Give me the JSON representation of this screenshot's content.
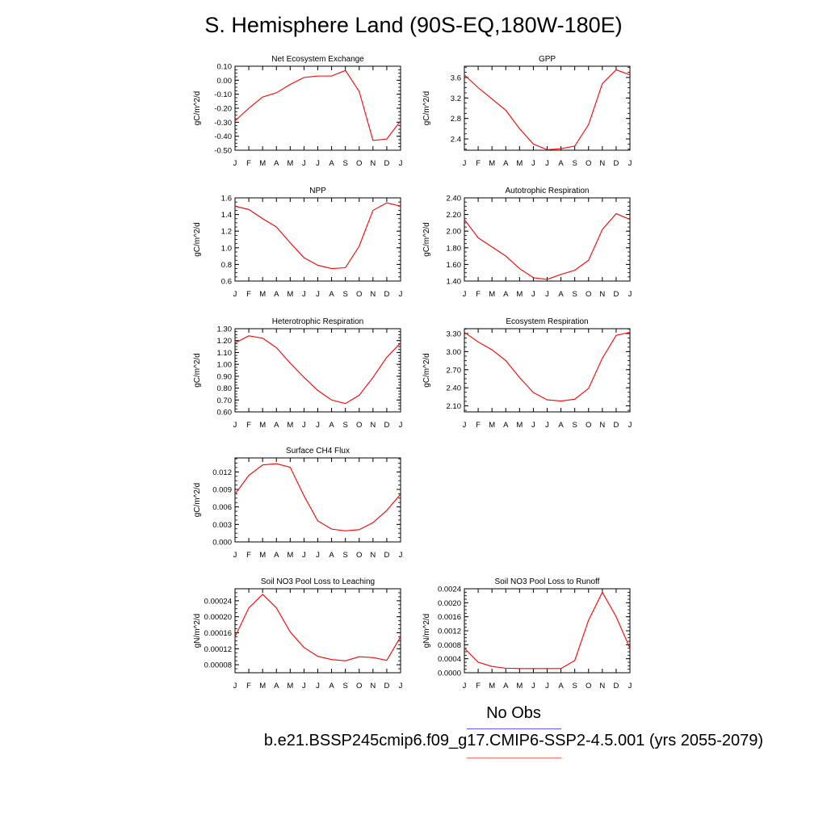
{
  "title": "S. Hemisphere Land (90S-EQ,180W-180E)",
  "legend": {
    "obs_label": "No Obs",
    "case_label": "b.e21.BSSP245cmip6.f09_g17.CMIP6-SSP2-4.5.001 (yrs 2055-2079)",
    "obs_color": "#5b5bff",
    "case_color": "#ff0000"
  },
  "chart_data": [
    {
      "type": "line",
      "title": "Net Ecosystem Exchange",
      "ylabel": "gC/m^2/d",
      "categories": [
        "J",
        "F",
        "M",
        "A",
        "M",
        "J",
        "J",
        "A",
        "S",
        "O",
        "N",
        "D",
        "J"
      ],
      "series": [
        {
          "values": [
            -0.29,
            -0.2,
            -0.12,
            -0.09,
            -0.03,
            0.02,
            0.03,
            0.03,
            0.07,
            -0.08,
            -0.43,
            -0.42,
            -0.29
          ]
        }
      ],
      "ylim": [
        -0.5,
        0.1
      ],
      "yticks": [
        -0.5,
        -0.4,
        -0.3,
        -0.2,
        -0.1,
        0.0,
        0.1
      ],
      "ytick_labels": [
        "-0.50",
        "-0.40",
        "-0.30",
        "-0.20",
        "-0.10",
        "0.00",
        "0.10"
      ]
    },
    {
      "type": "line",
      "title": "GPP",
      "ylabel": "gC/m^2/d",
      "categories": [
        "J",
        "F",
        "M",
        "A",
        "M",
        "J",
        "J",
        "A",
        "S",
        "O",
        "N",
        "D",
        "J"
      ],
      "series": [
        {
          "values": [
            3.65,
            3.4,
            3.18,
            2.96,
            2.6,
            2.3,
            2.19,
            2.21,
            2.26,
            2.68,
            3.48,
            3.75,
            3.65
          ]
        }
      ],
      "ylim": [
        2.18,
        3.82
      ],
      "yticks": [
        2.4,
        2.8,
        3.2,
        3.6
      ],
      "ytick_labels": [
        "2.4",
        "2.8",
        "3.2",
        "3.6"
      ]
    },
    {
      "type": "line",
      "title": "NPP",
      "ylabel": "gC/m^2/d",
      "categories": [
        "J",
        "F",
        "M",
        "A",
        "M",
        "J",
        "J",
        "A",
        "S",
        "O",
        "N",
        "D",
        "J"
      ],
      "series": [
        {
          "values": [
            1.5,
            1.46,
            1.35,
            1.25,
            1.06,
            0.88,
            0.79,
            0.75,
            0.76,
            1.02,
            1.45,
            1.54,
            1.5
          ]
        }
      ],
      "ylim": [
        0.6,
        1.6
      ],
      "yticks": [
        0.6,
        0.8,
        1.0,
        1.2,
        1.4,
        1.6
      ],
      "ytick_labels": [
        "0.6",
        "0.8",
        "1.0",
        "1.2",
        "1.4",
        "1.6"
      ]
    },
    {
      "type": "line",
      "title": "Autotrophic Respiration",
      "ylabel": "gC/m^2/d",
      "categories": [
        "J",
        "F",
        "M",
        "A",
        "M",
        "J",
        "J",
        "A",
        "S",
        "O",
        "N",
        "D",
        "J"
      ],
      "series": [
        {
          "values": [
            2.14,
            1.92,
            1.81,
            1.7,
            1.55,
            1.44,
            1.42,
            1.48,
            1.53,
            1.65,
            2.02,
            2.21,
            2.14
          ]
        }
      ],
      "ylim": [
        1.4,
        2.4
      ],
      "yticks": [
        1.4,
        1.6,
        1.8,
        2.0,
        2.2,
        2.4
      ],
      "ytick_labels": [
        "1.40",
        "1.60",
        "1.80",
        "2.00",
        "2.20",
        "2.40"
      ]
    },
    {
      "type": "line",
      "title": "Heterotrophic Respiration",
      "ylabel": "gC/m^2/d",
      "categories": [
        "J",
        "F",
        "M",
        "A",
        "M",
        "J",
        "J",
        "A",
        "S",
        "O",
        "N",
        "D",
        "J"
      ],
      "series": [
        {
          "values": [
            1.18,
            1.24,
            1.22,
            1.14,
            1.01,
            0.89,
            0.78,
            0.7,
            0.67,
            0.74,
            0.89,
            1.06,
            1.18
          ]
        }
      ],
      "ylim": [
        0.6,
        1.3
      ],
      "yticks": [
        0.6,
        0.7,
        0.8,
        0.9,
        1.0,
        1.1,
        1.2,
        1.3
      ],
      "ytick_labels": [
        "0.60",
        "0.70",
        "0.80",
        "0.90",
        "1.00",
        "1.10",
        "1.20",
        "1.30"
      ]
    },
    {
      "type": "line",
      "title": "Ecosystem Respiration",
      "ylabel": "gC/m^2/d",
      "categories": [
        "J",
        "F",
        "M",
        "A",
        "M",
        "J",
        "J",
        "A",
        "S",
        "O",
        "N",
        "D",
        "J"
      ],
      "series": [
        {
          "values": [
            3.32,
            3.16,
            3.03,
            2.85,
            2.57,
            2.32,
            2.2,
            2.18,
            2.21,
            2.39,
            2.89,
            3.27,
            3.32
          ]
        }
      ],
      "ylim": [
        2.0,
        3.38
      ],
      "yticks": [
        2.1,
        2.4,
        2.7,
        3.0,
        3.3
      ],
      "ytick_labels": [
        "2.10",
        "2.40",
        "2.70",
        "3.00",
        "3.30"
      ]
    },
    {
      "type": "line",
      "title": "Surface CH4 Flux",
      "ylabel": "gC/m^2/d",
      "categories": [
        "J",
        "F",
        "M",
        "A",
        "M",
        "J",
        "J",
        "A",
        "S",
        "O",
        "N",
        "D",
        "J"
      ],
      "series": [
        {
          "values": [
            0.0082,
            0.0114,
            0.0132,
            0.0134,
            0.0128,
            0.0079,
            0.0036,
            0.0022,
            0.0019,
            0.0021,
            0.0033,
            0.0054,
            0.0082
          ]
        }
      ],
      "ylim": [
        0.0,
        0.0144
      ],
      "yticks": [
        0.0,
        0.003,
        0.006,
        0.009,
        0.012
      ],
      "ytick_labels": [
        "0.000",
        "0.003",
        "0.006",
        "0.009",
        "0.012"
      ]
    },
    {
      "type": "line",
      "title": "Soil NO3 Pool Loss to Leaching",
      "ylabel": "gN/m^2/d",
      "categories": [
        "J",
        "F",
        "M",
        "A",
        "M",
        "J",
        "J",
        "A",
        "S",
        "O",
        "N",
        "D",
        "J"
      ],
      "series": [
        {
          "values": [
            0.00015,
            0.000222,
            0.000256,
            0.000222,
            0.000162,
            0.000123,
            0.000101,
            9.3e-05,
            9e-05,
            0.0001,
            9.8e-05,
            9.1e-05,
            0.00015
          ]
        }
      ],
      "ylim": [
        6e-05,
        0.00027
      ],
      "yticks": [
        8e-05,
        0.00012,
        0.00016,
        0.0002,
        0.00024
      ],
      "ytick_labels": [
        "0.00008",
        "0.00012",
        "0.00016",
        "0.00020",
        "0.00024"
      ]
    },
    {
      "type": "line",
      "title": "Soil NO3 Pool Loss to Runoff",
      "ylabel": "gN/m^2/d",
      "categories": [
        "J",
        "F",
        "M",
        "A",
        "M",
        "J",
        "J",
        "A",
        "S",
        "O",
        "N",
        "D",
        "J"
      ],
      "series": [
        {
          "values": [
            0.0007,
            0.0003,
            0.00018,
            0.00013,
            0.00012,
            0.00012,
            0.00012,
            0.00012,
            0.00035,
            0.0015,
            0.0023,
            0.0016,
            0.0007
          ]
        }
      ],
      "ylim": [
        0.0,
        0.0024
      ],
      "yticks": [
        0.0,
        0.0004,
        0.0008,
        0.0012,
        0.0016,
        0.002,
        0.0024
      ],
      "ytick_labels": [
        "0.0000",
        "0.0004",
        "0.0008",
        "0.0012",
        "0.0016",
        "0.0020",
        "0.0024"
      ]
    }
  ]
}
